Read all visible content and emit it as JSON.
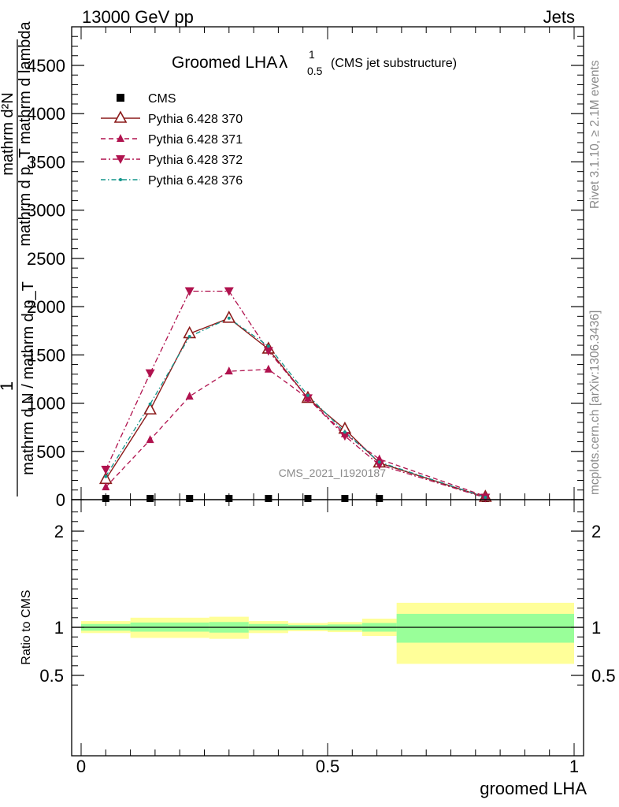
{
  "header": {
    "left": "13000 GeV pp",
    "right": "Jets"
  },
  "side_labels": {
    "rivet": "Rivet 3.1.10, ≥ 2.1M events",
    "mcplots": "mcplots.cern.ch [arXiv:1306.3436]"
  },
  "watermark": "CMS_2021_I1920187",
  "chart_data": [
    {
      "type": "line",
      "title": "Groomed LHA",
      "title_symbol": "λ",
      "title_superscript": "1",
      "title_subscript": "0.5",
      "subtitle": "(CMS jet substructure)",
      "ylabel_numerator": "mathrm d²N",
      "ylabel_numerator_sub": "mathrm d p_T mathrm d lambda",
      "ylabel_one": "1",
      "ylabel_denominator": "mathrm d N / mathrm d p_T",
      "xlim": [
        0,
        1
      ],
      "ylim": [
        0,
        4900
      ],
      "yticks": [
        0,
        500,
        1000,
        1500,
        2000,
        2500,
        3000,
        3500,
        4000,
        4500
      ],
      "ytick_labels": [
        "0",
        "500",
        "1000",
        "1500",
        "2000",
        "2500",
        "3000",
        "3500",
        "4000",
        "4500"
      ],
      "x": [
        0.05,
        0.14,
        0.22,
        0.3,
        0.38,
        0.46,
        0.535,
        0.605,
        0.82
      ],
      "series": [
        {
          "name": "CMS",
          "style": "data",
          "color": "#000000",
          "values": [
            8,
            8,
            8,
            8,
            8,
            8,
            8,
            8,
            8
          ]
        },
        {
          "name": "Pythia 6.428 370",
          "style": "solid",
          "marker": "open-triangle-up",
          "color": "#8b1a1a",
          "values": [
            210,
            930,
            1720,
            1880,
            1560,
            1050,
            730,
            380,
            25
          ]
        },
        {
          "name": "Pythia 6.428 371",
          "style": "dashed",
          "marker": "triangle-up",
          "color": "#b0124e",
          "values": [
            130,
            620,
            1070,
            1330,
            1350,
            1050,
            680,
            420,
            35
          ]
        },
        {
          "name": "Pythia 6.428 372",
          "style": "dashdot",
          "marker": "triangle-down",
          "color": "#b0124e",
          "values": [
            310,
            1310,
            2160,
            2160,
            1540,
            1050,
            660,
            360,
            20
          ]
        },
        {
          "name": "Pythia 6.428 376",
          "style": "dashdot-teal",
          "marker": "dot",
          "color": "#14968c",
          "values": [
            240,
            990,
            1690,
            1880,
            1590,
            1080,
            700,
            390,
            25
          ]
        }
      ]
    },
    {
      "type": "area",
      "ylabel": "Ratio to CMS",
      "xlabel": "groomed LHA",
      "xlim": [
        0,
        1
      ],
      "ylim": [
        0.38,
        2.3
      ],
      "xticks": [
        0,
        0.5,
        1
      ],
      "xtick_labels": [
        "0",
        "0.5",
        "1"
      ],
      "yticks": [
        0.5,
        1,
        2
      ],
      "ytick_labels": [
        "0.5",
        "1",
        "2"
      ],
      "inner_band_color": "#99ff99",
      "outer_band_color": "#ffff99",
      "bins": [
        {
          "x_low": 0.0,
          "x_high": 0.1,
          "inner": [
            0.965,
            1.035
          ],
          "outer": [
            0.94,
            1.065
          ]
        },
        {
          "x_low": 0.1,
          "x_high": 0.26,
          "inner": [
            0.955,
            1.05
          ],
          "outer": [
            0.89,
            1.1
          ]
        },
        {
          "x_low": 0.26,
          "x_high": 0.34,
          "inner": [
            0.945,
            1.055
          ],
          "outer": [
            0.88,
            1.11
          ]
        },
        {
          "x_low": 0.34,
          "x_high": 0.42,
          "inner": [
            0.97,
            1.035
          ],
          "outer": [
            0.94,
            1.065
          ]
        },
        {
          "x_low": 0.42,
          "x_high": 0.5,
          "inner": [
            0.975,
            1.025
          ],
          "outer": [
            0.96,
            1.045
          ]
        },
        {
          "x_low": 0.5,
          "x_high": 0.57,
          "inner": [
            0.97,
            1.03
          ],
          "outer": [
            0.95,
            1.055
          ]
        },
        {
          "x_low": 0.57,
          "x_high": 0.64,
          "inner": [
            0.955,
            1.045
          ],
          "outer": [
            0.91,
            1.09
          ]
        },
        {
          "x_low": 0.64,
          "x_high": 1.0,
          "inner": [
            0.84,
            1.14
          ],
          "outer": [
            0.62,
            1.255
          ]
        }
      ]
    }
  ]
}
